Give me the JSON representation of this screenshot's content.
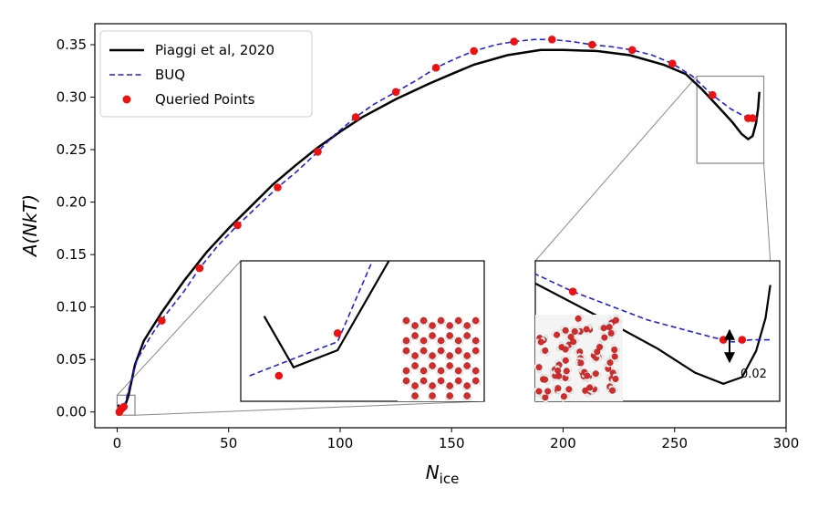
{
  "colors": {
    "reference": "#000000",
    "buq": "#1f1fe0",
    "queried": "#ee1111",
    "inset_frame": "#888888",
    "atom_oxygen": "#d42a2a",
    "atom_hydrogen": "#f0f0f0"
  },
  "chart_data": {
    "type": "line",
    "xlim": [
      -10,
      300
    ],
    "ylim": [
      -0.015,
      0.37
    ],
    "grid": false,
    "legend_position": "top-left",
    "x_label_main": "N",
    "x_label_sub": "ice",
    "y_label": "A(NkT)",
    "x_ticks": [
      0,
      50,
      100,
      150,
      200,
      250,
      300
    ],
    "x_tick_labels": [
      "0",
      "50",
      "100",
      "150",
      "200",
      "250",
      "300"
    ],
    "y_ticks": [
      0.0,
      0.05,
      0.1,
      0.15,
      0.2,
      0.25,
      0.3,
      0.35
    ],
    "y_tick_labels": [
      "0.00",
      "0.05",
      "0.10",
      "0.15",
      "0.20",
      "0.25",
      "0.30",
      "0.35"
    ],
    "series": [
      {
        "name": "Piaggi et al, 2020",
        "style": "solid",
        "points": [
          [
            0.5,
            0.007
          ],
          [
            1.5,
            0.001
          ],
          [
            3,
            0.003
          ],
          [
            5,
            0.015
          ],
          [
            8,
            0.045
          ],
          [
            12,
            0.068
          ],
          [
            20,
            0.095
          ],
          [
            30,
            0.125
          ],
          [
            40,
            0.152
          ],
          [
            50,
            0.175
          ],
          [
            60,
            0.196
          ],
          [
            70,
            0.217
          ],
          [
            80,
            0.235
          ],
          [
            90,
            0.252
          ],
          [
            100,
            0.267
          ],
          [
            110,
            0.281
          ],
          [
            125,
            0.298
          ],
          [
            140,
            0.313
          ],
          [
            150,
            0.322
          ],
          [
            160,
            0.331
          ],
          [
            175,
            0.34
          ],
          [
            190,
            0.345
          ],
          [
            200,
            0.345
          ],
          [
            215,
            0.344
          ],
          [
            230,
            0.34
          ],
          [
            245,
            0.331
          ],
          [
            255,
            0.322
          ],
          [
            262,
            0.308
          ],
          [
            270,
            0.29
          ],
          [
            276,
            0.276
          ],
          [
            280,
            0.265
          ],
          [
            283,
            0.26
          ],
          [
            285,
            0.263
          ],
          [
            286.5,
            0.275
          ],
          [
            287.5,
            0.29
          ],
          [
            288,
            0.305
          ]
        ]
      },
      {
        "name": "BUQ",
        "style": "dashed",
        "points": [
          [
            0,
            0.0
          ],
          [
            1.5,
            0.002
          ],
          [
            3,
            0.004
          ],
          [
            5,
            0.02
          ],
          [
            9,
            0.05
          ],
          [
            15,
            0.072
          ],
          [
            20,
            0.088
          ],
          [
            30,
            0.115
          ],
          [
            37,
            0.137
          ],
          [
            45,
            0.158
          ],
          [
            54,
            0.178
          ],
          [
            63,
            0.196
          ],
          [
            72,
            0.214
          ],
          [
            81,
            0.23
          ],
          [
            90,
            0.248
          ],
          [
            98,
            0.265
          ],
          [
            107,
            0.281
          ],
          [
            115,
            0.293
          ],
          [
            125,
            0.305
          ],
          [
            135,
            0.317
          ],
          [
            143,
            0.328
          ],
          [
            152,
            0.337
          ],
          [
            160,
            0.344
          ],
          [
            170,
            0.35
          ],
          [
            178,
            0.353
          ],
          [
            187,
            0.355
          ],
          [
            195,
            0.355
          ],
          [
            204,
            0.353
          ],
          [
            213,
            0.35
          ],
          [
            222,
            0.348
          ],
          [
            231,
            0.345
          ],
          [
            240,
            0.34
          ],
          [
            249,
            0.332
          ],
          [
            258,
            0.32
          ],
          [
            267,
            0.302
          ],
          [
            275,
            0.289
          ],
          [
            282,
            0.281
          ],
          [
            284,
            0.279
          ],
          [
            286,
            0.28
          ],
          [
            288,
            0.28
          ]
        ]
      },
      {
        "name": "Queried Points",
        "style": "markers",
        "points": [
          [
            1,
            0.0
          ],
          [
            2,
            0.003
          ],
          [
            3,
            0.005
          ],
          [
            20,
            0.087
          ],
          [
            37,
            0.137
          ],
          [
            54,
            0.178
          ],
          [
            72,
            0.214
          ],
          [
            90,
            0.248
          ],
          [
            107,
            0.281
          ],
          [
            125,
            0.305
          ],
          [
            143,
            0.328
          ],
          [
            160,
            0.344
          ],
          [
            178,
            0.353
          ],
          [
            195,
            0.355
          ],
          [
            213,
            0.35
          ],
          [
            231,
            0.345
          ],
          [
            249,
            0.332
          ],
          [
            267,
            0.302
          ],
          [
            283,
            0.28
          ],
          [
            285,
            0.28
          ]
        ]
      }
    ],
    "insets": [
      {
        "source_xlim": [
          0,
          8
        ],
        "source_ylim": [
          -0.003,
          0.016
        ],
        "reference_points": [
          [
            0.5,
            0.007
          ],
          [
            1.5,
            0.001
          ],
          [
            3,
            0.003
          ],
          [
            5,
            0.015
          ],
          [
            8,
            0.045
          ]
        ],
        "buq_points": [
          [
            0,
            0.0
          ],
          [
            1.5,
            0.002
          ],
          [
            3,
            0.004
          ],
          [
            5,
            0.02
          ],
          [
            9,
            0.05
          ]
        ],
        "queried_points": [
          [
            1,
            0.0
          ],
          [
            3,
            0.005
          ]
        ],
        "view_xlim": [
          -0.3,
          8
        ],
        "view_ylim": [
          -0.003,
          0.0135
        ],
        "lattice": "hexagonal-ice"
      },
      {
        "source_xlim": [
          260,
          290
        ],
        "source_ylim": [
          0.237,
          0.32
        ],
        "reference_points": [
          [
            262,
            0.308
          ],
          [
            270,
            0.29
          ],
          [
            276,
            0.276
          ],
          [
            280,
            0.265
          ],
          [
            283,
            0.26
          ],
          [
            285,
            0.263
          ],
          [
            286.5,
            0.275
          ],
          [
            287.5,
            0.29
          ],
          [
            288,
            0.305
          ]
        ],
        "buq_points": [
          [
            262,
            0.312
          ],
          [
            267,
            0.302
          ],
          [
            275,
            0.289
          ],
          [
            282,
            0.281
          ],
          [
            284,
            0.279
          ],
          [
            286,
            0.28
          ],
          [
            288,
            0.28
          ]
        ],
        "queried_points": [
          [
            267,
            0.302
          ],
          [
            283,
            0.28
          ],
          [
            285,
            0.28
          ]
        ],
        "view_xlim": [
          263,
          289
        ],
        "view_ylim": [
          0.252,
          0.316
        ],
        "gap_annotation": "0.02",
        "lattice": "liquid-water"
      }
    ]
  }
}
